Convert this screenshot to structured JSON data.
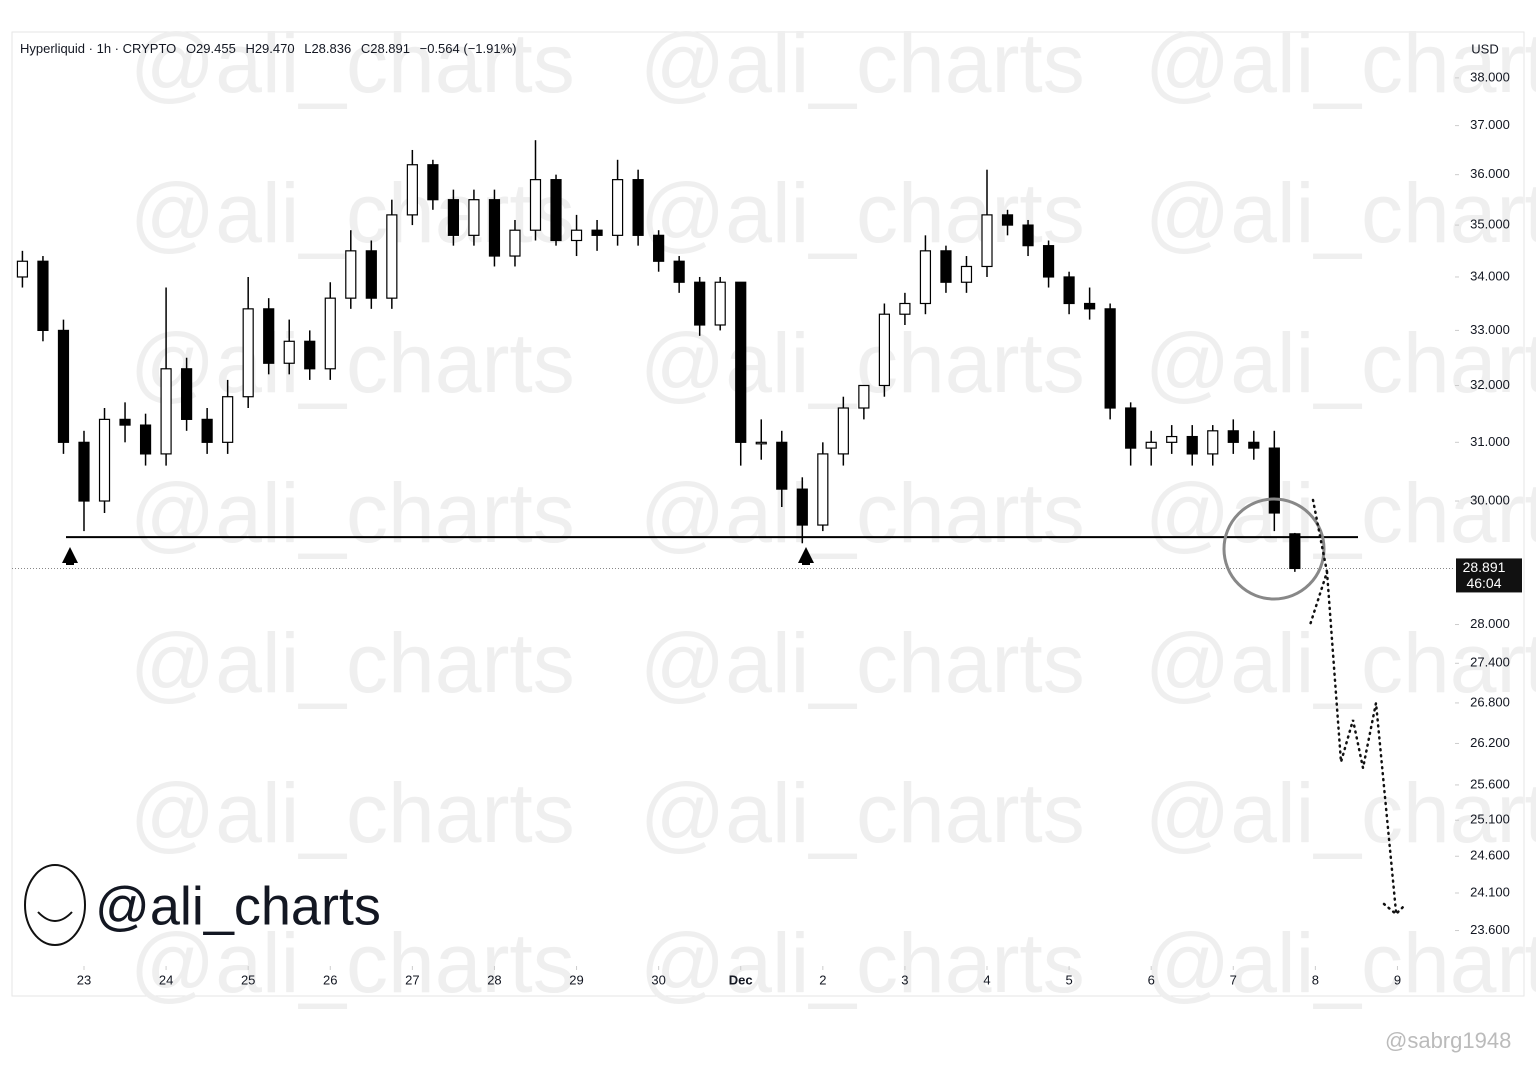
{
  "chart_data": {
    "type": "candlestick",
    "title": "Hyperliquid · 1h · CRYPTO",
    "ohlc_text": [
      "O29.455",
      "H29.470",
      "L28.836",
      "C28.891",
      "−0.564 (−1.91%)"
    ],
    "currency": "USD",
    "watermark": "@ali_charts",
    "credit": "@sabrg1948",
    "log_scale": true,
    "up_color": "#ffffff",
    "down_color": "#000000",
    "outline_color": "#000000",
    "x": [
      -0.75,
      -0.5,
      -0.25,
      0,
      0.25,
      0.5,
      0.75,
      1,
      1.25,
      1.5,
      1.75,
      2,
      2.25,
      2.5,
      2.75,
      3,
      3.25,
      3.5,
      3.75,
      4,
      4.25,
      4.5,
      4.75,
      5,
      5.25,
      5.5,
      5.75,
      6,
      6.25,
      6.5,
      6.75,
      7,
      7.25,
      7.5,
      7.75,
      8,
      8.25,
      8.5,
      8.75,
      9,
      9.25,
      9.5,
      9.75,
      10,
      10.25,
      10.5,
      10.75,
      11,
      11.25,
      11.5,
      11.75,
      12,
      12.25,
      12.5,
      12.75,
      13,
      13.25,
      13.5,
      13.75,
      14,
      14.25,
      14.5,
      14.75
    ],
    "open": [
      34.0,
      34.3,
      33.0,
      31.0,
      30.0,
      31.4,
      31.3,
      30.8,
      32.3,
      31.4,
      31.0,
      31.8,
      33.4,
      32.4,
      32.8,
      32.3,
      33.6,
      34.5,
      33.6,
      35.2,
      36.2,
      35.5,
      34.8,
      35.5,
      34.4,
      34.9,
      35.9,
      34.7,
      34.9,
      34.8,
      35.9,
      34.8,
      34.3,
      33.9,
      33.1,
      33.9,
      31.0,
      31.0,
      30.2,
      29.6,
      30.8,
      31.6,
      32.0,
      33.3,
      33.5,
      34.5,
      33.9,
      34.2,
      35.2,
      35.0,
      34.6,
      34.0,
      33.5,
      33.4,
      31.6,
      30.9,
      31.0,
      31.1,
      30.8,
      31.2,
      31.0,
      30.9,
      29.455
    ],
    "high": [
      34.5,
      34.4,
      33.2,
      31.2,
      31.6,
      31.7,
      31.5,
      33.8,
      32.5,
      31.6,
      32.1,
      34.0,
      33.6,
      33.2,
      33.0,
      33.9,
      34.9,
      34.7,
      35.5,
      36.5,
      36.3,
      35.7,
      35.7,
      35.7,
      35.1,
      36.7,
      36.0,
      35.2,
      35.1,
      36.3,
      36.1,
      34.9,
      34.4,
      34.0,
      34.0,
      33.9,
      31.4,
      31.2,
      30.4,
      31.0,
      31.8,
      32.0,
      33.5,
      33.7,
      34.8,
      34.6,
      34.4,
      36.1,
      35.3,
      35.1,
      34.7,
      34.1,
      33.8,
      33.5,
      31.7,
      31.2,
      31.3,
      31.3,
      31.3,
      31.4,
      31.2,
      31.2,
      29.47
    ],
    "low": [
      33.8,
      32.8,
      30.8,
      29.5,
      29.8,
      31.0,
      30.6,
      30.6,
      31.2,
      30.8,
      30.8,
      31.6,
      32.2,
      32.2,
      32.1,
      32.1,
      33.4,
      33.4,
      33.4,
      35.0,
      35.3,
      34.6,
      34.6,
      34.2,
      34.2,
      34.7,
      34.6,
      34.4,
      34.5,
      34.6,
      34.6,
      34.1,
      33.7,
      32.9,
      33.0,
      30.6,
      30.7,
      29.9,
      29.3,
      29.5,
      30.6,
      31.4,
      31.8,
      33.1,
      33.3,
      33.7,
      33.7,
      34.0,
      34.8,
      34.4,
      33.8,
      33.3,
      33.2,
      31.4,
      30.6,
      30.6,
      30.8,
      30.6,
      30.6,
      30.8,
      30.7,
      29.5,
      28.836
    ],
    "close": [
      34.3,
      33.0,
      31.0,
      30.0,
      31.4,
      31.3,
      30.8,
      32.3,
      31.4,
      31.0,
      31.8,
      33.4,
      32.4,
      32.8,
      32.3,
      33.6,
      34.5,
      33.6,
      35.2,
      36.2,
      35.5,
      34.8,
      35.5,
      34.4,
      34.9,
      35.9,
      34.7,
      34.9,
      34.8,
      35.9,
      34.8,
      34.3,
      33.9,
      33.1,
      33.9,
      31.0,
      31.0,
      30.2,
      29.6,
      30.8,
      31.6,
      32.0,
      33.3,
      33.5,
      34.5,
      33.9,
      34.2,
      35.2,
      35.0,
      34.6,
      34.0,
      33.5,
      33.4,
      31.6,
      30.9,
      31.0,
      31.1,
      30.8,
      31.2,
      31.0,
      30.9,
      29.8,
      28.891
    ],
    "support_level": 29.4,
    "last_price": 28.891,
    "last_price_label": "28.891",
    "countdown": "46:04",
    "xlim": [
      -0.877,
      16.64
    ],
    "xticks": [
      {
        "value": 0,
        "label": "23"
      },
      {
        "value": 1,
        "label": "24"
      },
      {
        "value": 2,
        "label": "25"
      },
      {
        "value": 3,
        "label": "26"
      },
      {
        "value": 4,
        "label": "27"
      },
      {
        "value": 5,
        "label": "28"
      },
      {
        "value": 6,
        "label": "29"
      },
      {
        "value": 7,
        "label": "30"
      },
      {
        "value": 8,
        "label": "Dec"
      },
      {
        "value": 9,
        "label": "2"
      },
      {
        "value": 10,
        "label": "3"
      },
      {
        "value": 11,
        "label": "4"
      },
      {
        "value": 12,
        "label": "5"
      },
      {
        "value": 13,
        "label": "6"
      },
      {
        "value": 14,
        "label": "7"
      },
      {
        "value": 15,
        "label": "8"
      },
      {
        "value": 16,
        "label": "9"
      }
    ],
    "ylim": [
      23.15,
      39.03
    ],
    "yticks": [
      {
        "value": 38,
        "label": "38.000"
      },
      {
        "value": 37,
        "label": "37.000"
      },
      {
        "value": 36,
        "label": "36.000"
      },
      {
        "value": 35,
        "label": "35.000"
      },
      {
        "value": 34,
        "label": "34.000"
      },
      {
        "value": 33,
        "label": "33.000"
      },
      {
        "value": 32,
        "label": "32.000"
      },
      {
        "value": 31,
        "label": "31.000"
      },
      {
        "value": 30,
        "label": "30.000"
      },
      {
        "value": 28,
        "label": "28.000"
      },
      {
        "value": 27.4,
        "label": "27.400"
      },
      {
        "value": 26.8,
        "label": "26.800"
      },
      {
        "value": 26.2,
        "label": "26.200"
      },
      {
        "value": 25.6,
        "label": "25.600"
      },
      {
        "value": 25.1,
        "label": "25.100"
      },
      {
        "value": 24.6,
        "label": "24.600"
      },
      {
        "value": 24.1,
        "label": "24.100"
      },
      {
        "value": 23.6,
        "label": "23.600"
      }
    ]
  }
}
